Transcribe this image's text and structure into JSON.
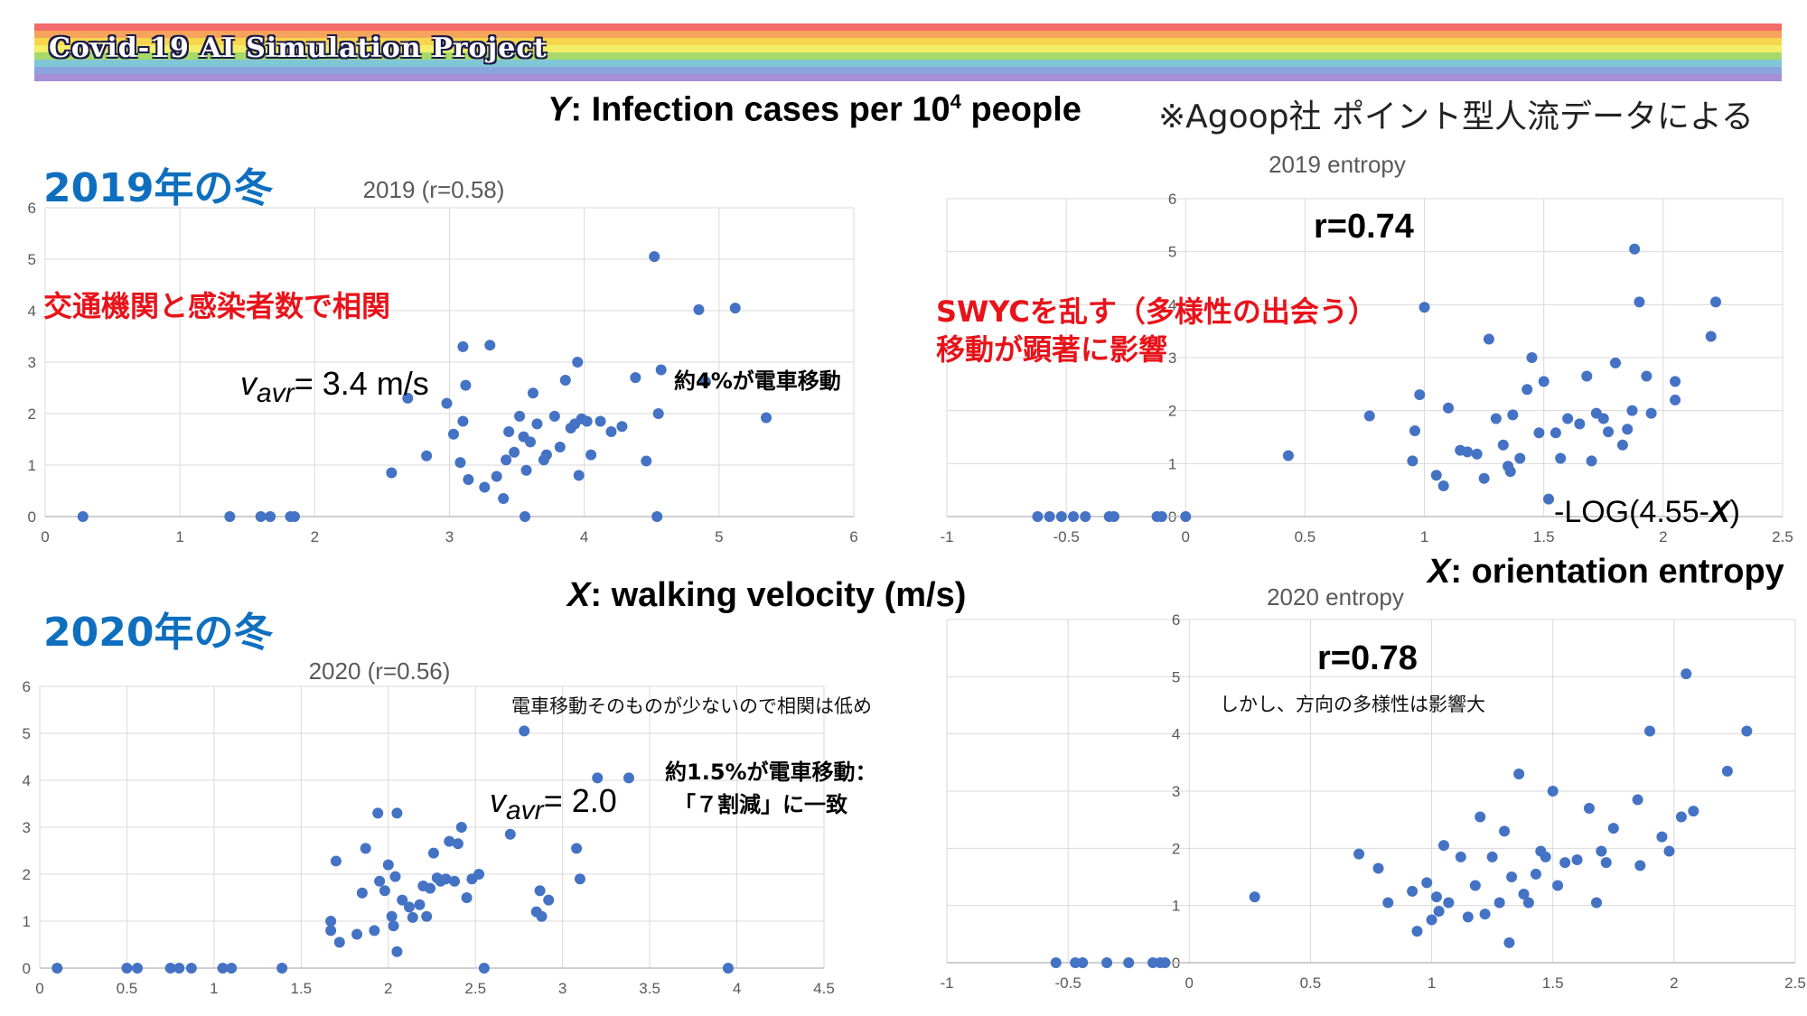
{
  "banner": {
    "title": "Covid-19 AI Simulation Project"
  },
  "labels": {
    "y_axis_prefix": "Y",
    "y_axis_text": ": Infection cases per 10",
    "y_axis_sup": "4",
    "y_axis_suffix": " people",
    "note": "※Agoop社 ポイント型人流データによる",
    "season_2019": "2019年の冬",
    "season_2020": "2020年の冬",
    "red_left": "交通機関と感染者数で相関",
    "red_right_1": "SWYCを乱す（多様性の出会う）",
    "red_right_2": "移動が顕著に影響",
    "r_2019": "r=0.74",
    "r_2020": "r=0.78",
    "train_2019": "約4%が電車移動",
    "train_2020_1": "約1.5%が電車移動：",
    "train_2020_2": "「７割減」に一致",
    "low_corr": "電車移動そのものが少ないので相関は低め",
    "diversity": "しかし、方向の多様性は影響大",
    "vavr_sub": "avr",
    "vavr_2019_value": "= 3.4 m/s",
    "vavr_2020_value": "= 2.0",
    "x_walk_prefix": "X",
    "x_walk_text": ": walking velocity (m/s)",
    "x_entropy_prefix": "X",
    "x_entropy_text": ": orientation entropy",
    "formula_text": "-LOG(4.55-",
    "formula_var": "X",
    "formula_close": ")"
  },
  "colors": {
    "marker": "#4472c4",
    "grid": "#d9d9d9",
    "axis_text": "#595959",
    "season": "#0f6fbf",
    "red": "#e8131a"
  },
  "chart_data": [
    {
      "id": "v2019",
      "type": "scatter",
      "title": "2019 (r=0.58)",
      "xlim": [
        0,
        6
      ],
      "ylim": [
        0,
        6
      ],
      "xticks": [
        "0",
        "1",
        "2",
        "3",
        "4",
        "5",
        "6"
      ],
      "yticks": [
        "0",
        "1",
        "2",
        "3",
        "4",
        "5",
        "6"
      ],
      "points": [
        [
          0.28,
          0
        ],
        [
          1.37,
          0
        ],
        [
          1.6,
          0
        ],
        [
          1.67,
          0
        ],
        [
          1.82,
          0
        ],
        [
          1.85,
          0
        ],
        [
          2.57,
          0.85
        ],
        [
          2.69,
          2.3
        ],
        [
          2.83,
          1.18
        ],
        [
          2.98,
          2.2
        ],
        [
          3.03,
          1.6
        ],
        [
          3.08,
          1.05
        ],
        [
          3.1,
          1.85
        ],
        [
          3.1,
          3.3
        ],
        [
          3.12,
          2.55
        ],
        [
          3.14,
          0.72
        ],
        [
          3.26,
          0.57
        ],
        [
          3.3,
          3.33
        ],
        [
          3.35,
          0.78
        ],
        [
          3.4,
          0.35
        ],
        [
          3.42,
          1.1
        ],
        [
          3.44,
          1.65
        ],
        [
          3.48,
          1.25
        ],
        [
          3.52,
          1.95
        ],
        [
          3.55,
          1.55
        ],
        [
          3.56,
          0
        ],
        [
          3.57,
          0.9
        ],
        [
          3.6,
          1.45
        ],
        [
          3.62,
          2.4
        ],
        [
          3.65,
          1.8
        ],
        [
          3.7,
          1.1
        ],
        [
          3.72,
          1.2
        ],
        [
          3.78,
          1.95
        ],
        [
          3.82,
          1.35
        ],
        [
          3.86,
          2.65
        ],
        [
          3.9,
          1.72
        ],
        [
          3.93,
          1.8
        ],
        [
          3.95,
          3.0
        ],
        [
          3.96,
          0.8
        ],
        [
          3.98,
          1.9
        ],
        [
          4.02,
          1.85
        ],
        [
          4.05,
          1.2
        ],
        [
          4.12,
          1.85
        ],
        [
          4.2,
          1.65
        ],
        [
          4.28,
          1.75
        ],
        [
          4.38,
          2.7
        ],
        [
          4.46,
          1.08
        ],
        [
          4.52,
          5.05
        ],
        [
          4.54,
          0
        ],
        [
          4.55,
          2.0
        ],
        [
          4.57,
          2.85
        ],
        [
          4.85,
          4.02
        ],
        [
          4.9,
          2.62
        ],
        [
          5.12,
          4.05
        ],
        [
          5.35,
          1.92
        ]
      ]
    },
    {
      "id": "e2019",
      "type": "scatter",
      "title": "2019 entropy",
      "xlim": [
        -1,
        2.5
      ],
      "ylim": [
        0,
        6
      ],
      "xticks": [
        "-1",
        "-0.5",
        "0",
        "0.5",
        "1",
        "1.5",
        "2",
        "2.5"
      ],
      "yticks": [
        "0",
        "1",
        "2",
        "3",
        "4",
        "5",
        "6"
      ],
      "points": [
        [
          -0.62,
          0
        ],
        [
          -0.57,
          0
        ],
        [
          -0.52,
          0
        ],
        [
          -0.47,
          0
        ],
        [
          -0.42,
          0
        ],
        [
          -0.32,
          0
        ],
        [
          -0.3,
          0
        ],
        [
          -0.12,
          0
        ],
        [
          -0.1,
          0
        ],
        [
          0,
          0
        ],
        [
          0.43,
          1.15
        ],
        [
          0.77,
          1.9
        ],
        [
          0.95,
          1.05
        ],
        [
          0.96,
          1.62
        ],
        [
          0.98,
          2.3
        ],
        [
          1.0,
          3.95
        ],
        [
          1.05,
          0.78
        ],
        [
          1.08,
          0.58
        ],
        [
          1.1,
          2.05
        ],
        [
          1.15,
          1.25
        ],
        [
          1.18,
          1.22
        ],
        [
          1.22,
          1.18
        ],
        [
          1.25,
          0.72
        ],
        [
          1.27,
          3.35
        ],
        [
          1.3,
          1.85
        ],
        [
          1.33,
          1.35
        ],
        [
          1.35,
          0.95
        ],
        [
          1.36,
          0.85
        ],
        [
          1.37,
          1.92
        ],
        [
          1.4,
          1.1
        ],
        [
          1.43,
          2.4
        ],
        [
          1.45,
          3.0
        ],
        [
          1.48,
          1.58
        ],
        [
          1.5,
          2.55
        ],
        [
          1.52,
          0.33
        ],
        [
          1.55,
          1.58
        ],
        [
          1.57,
          1.1
        ],
        [
          1.6,
          1.85
        ],
        [
          1.65,
          1.75
        ],
        [
          1.68,
          2.65
        ],
        [
          1.7,
          1.05
        ],
        [
          1.72,
          1.95
        ],
        [
          1.75,
          1.85
        ],
        [
          1.77,
          1.6
        ],
        [
          1.8,
          2.9
        ],
        [
          1.83,
          1.35
        ],
        [
          1.85,
          1.65
        ],
        [
          1.87,
          2.0
        ],
        [
          1.88,
          5.05
        ],
        [
          1.9,
          4.05
        ],
        [
          1.93,
          2.65
        ],
        [
          1.95,
          1.95
        ],
        [
          2.05,
          2.55
        ],
        [
          2.05,
          2.2
        ],
        [
          2.2,
          3.4
        ],
        [
          2.22,
          4.05
        ]
      ]
    },
    {
      "id": "v2020",
      "type": "scatter",
      "title": "2020 (r=0.56)",
      "xlim": [
        0,
        4.5
      ],
      "ylim": [
        0,
        6
      ],
      "xticks": [
        "0",
        "0.5",
        "1",
        "1.5",
        "2",
        "2.5",
        "3",
        "3.5",
        "4",
        "4.5"
      ],
      "yticks": [
        "0",
        "1",
        "2",
        "3",
        "4",
        "5",
        "6"
      ],
      "points": [
        [
          0.1,
          0
        ],
        [
          0.5,
          0
        ],
        [
          0.56,
          0
        ],
        [
          0.75,
          0
        ],
        [
          0.8,
          0
        ],
        [
          0.87,
          0
        ],
        [
          1.05,
          0
        ],
        [
          1.1,
          0
        ],
        [
          1.39,
          0
        ],
        [
          1.67,
          1.0
        ],
        [
          1.67,
          0.8
        ],
        [
          1.72,
          0.55
        ],
        [
          1.7,
          2.28
        ],
        [
          1.82,
          0.72
        ],
        [
          1.85,
          1.6
        ],
        [
          1.87,
          2.55
        ],
        [
          1.92,
          0.8
        ],
        [
          1.94,
          3.3
        ],
        [
          1.95,
          1.85
        ],
        [
          1.98,
          1.65
        ],
        [
          2.0,
          2.2
        ],
        [
          2.02,
          1.1
        ],
        [
          2.03,
          0.9
        ],
        [
          2.04,
          1.95
        ],
        [
          2.05,
          3.3
        ],
        [
          2.05,
          0.35
        ],
        [
          2.08,
          1.45
        ],
        [
          2.12,
          1.3
        ],
        [
          2.14,
          1.08
        ],
        [
          2.18,
          1.35
        ],
        [
          2.2,
          1.75
        ],
        [
          2.22,
          1.1
        ],
        [
          2.24,
          1.7
        ],
        [
          2.26,
          2.45
        ],
        [
          2.28,
          1.92
        ],
        [
          2.3,
          1.85
        ],
        [
          2.33,
          1.9
        ],
        [
          2.35,
          2.7
        ],
        [
          2.38,
          1.85
        ],
        [
          2.4,
          2.65
        ],
        [
          2.42,
          3.0
        ],
        [
          2.45,
          1.5
        ],
        [
          2.48,
          1.9
        ],
        [
          2.52,
          2.0
        ],
        [
          2.55,
          0
        ],
        [
          2.7,
          2.85
        ],
        [
          2.78,
          5.05
        ],
        [
          2.85,
          1.2
        ],
        [
          2.87,
          1.65
        ],
        [
          2.88,
          1.1
        ],
        [
          2.92,
          1.45
        ],
        [
          3.08,
          2.55
        ],
        [
          3.1,
          1.9
        ],
        [
          3.2,
          4.05
        ],
        [
          3.38,
          4.05
        ],
        [
          3.95,
          0
        ]
      ]
    },
    {
      "id": "e2020",
      "type": "scatter",
      "title": "2020 entropy",
      "xlim": [
        -1,
        2.5
      ],
      "ylim": [
        0,
        6
      ],
      "xticks": [
        "-1",
        "-0.5",
        "0",
        "0.5",
        "1",
        "1.5",
        "2",
        "2.5"
      ],
      "yticks": [
        "0",
        "1",
        "2",
        "3",
        "4",
        "5",
        "6"
      ],
      "points": [
        [
          -0.55,
          0
        ],
        [
          -0.47,
          0
        ],
        [
          -0.44,
          0
        ],
        [
          -0.34,
          0
        ],
        [
          -0.25,
          0
        ],
        [
          -0.15,
          0
        ],
        [
          -0.12,
          0
        ],
        [
          -0.1,
          0
        ],
        [
          0.27,
          1.15
        ],
        [
          0.7,
          1.9
        ],
        [
          0.78,
          1.65
        ],
        [
          0.82,
          1.05
        ],
        [
          0.92,
          1.25
        ],
        [
          0.94,
          0.55
        ],
        [
          0.98,
          1.4
        ],
        [
          1.0,
          0.75
        ],
        [
          1.02,
          1.15
        ],
        [
          1.03,
          0.9
        ],
        [
          1.05,
          2.05
        ],
        [
          1.07,
          1.05
        ],
        [
          1.12,
          1.85
        ],
        [
          1.15,
          0.8
        ],
        [
          1.18,
          1.35
        ],
        [
          1.2,
          2.55
        ],
        [
          1.22,
          0.85
        ],
        [
          1.25,
          1.85
        ],
        [
          1.28,
          1.05
        ],
        [
          1.3,
          2.3
        ],
        [
          1.32,
          0.35
        ],
        [
          1.33,
          1.5
        ],
        [
          1.36,
          3.3
        ],
        [
          1.38,
          1.2
        ],
        [
          1.4,
          1.05
        ],
        [
          1.43,
          1.55
        ],
        [
          1.45,
          1.95
        ],
        [
          1.47,
          1.85
        ],
        [
          1.5,
          3.0
        ],
        [
          1.52,
          1.35
        ],
        [
          1.55,
          1.75
        ],
        [
          1.6,
          1.8
        ],
        [
          1.65,
          2.7
        ],
        [
          1.68,
          1.05
        ],
        [
          1.7,
          1.95
        ],
        [
          1.72,
          1.75
        ],
        [
          1.75,
          2.35
        ],
        [
          1.85,
          2.85
        ],
        [
          1.86,
          1.7
        ],
        [
          1.9,
          4.05
        ],
        [
          1.95,
          2.2
        ],
        [
          1.98,
          1.95
        ],
        [
          2.03,
          2.55
        ],
        [
          2.05,
          5.05
        ],
        [
          2.08,
          2.65
        ],
        [
          2.22,
          3.35
        ],
        [
          2.3,
          4.05
        ]
      ]
    }
  ]
}
